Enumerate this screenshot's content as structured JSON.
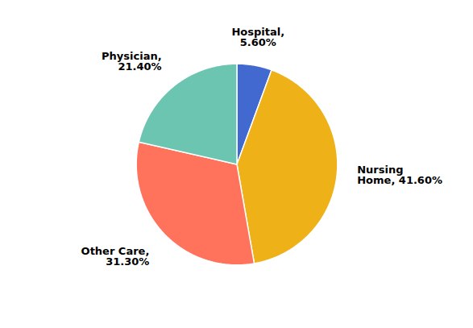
{
  "chart_data": {
    "type": "pie",
    "categories": [
      "Hospital",
      "Nursing Home",
      "Other Care",
      "Physician"
    ],
    "values": [
      5.6,
      41.6,
      31.3,
      21.4
    ],
    "value_labels": [
      "Hospital,\n5.60%",
      "Nursing\nHome, 41.60%",
      "Other Care,\n31.30%",
      "Physician,\n21.40%"
    ],
    "data_labels": true
  }
}
